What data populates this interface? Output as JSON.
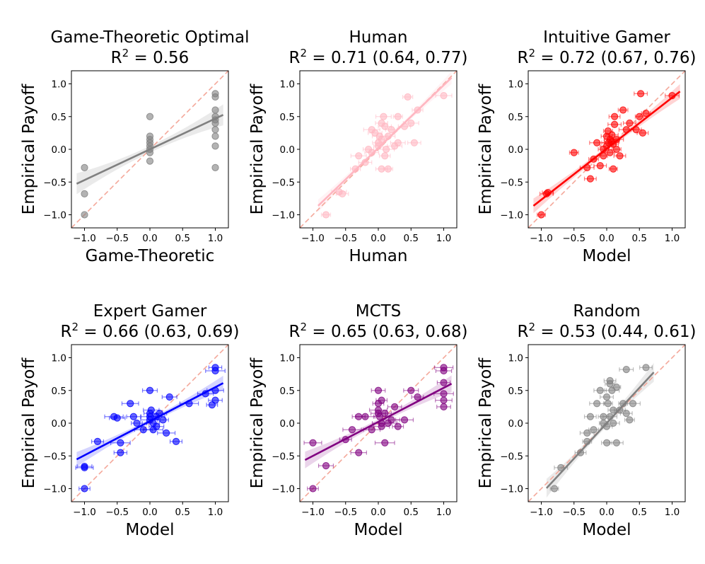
{
  "figure": {
    "background": "#ffffff"
  },
  "chart_data": [
    {
      "type": "scatter",
      "title": "Game-Theoretic Optimal",
      "r2_label": "0.56",
      "xlabel": "Game-Theoretic",
      "ylabel": "Empirical Payoff",
      "xlim": [
        -1.2,
        1.2
      ],
      "ylim": [
        -1.2,
        1.2
      ],
      "xticks": [
        "-1.0",
        "-0.5",
        "0.0",
        "0.5",
        "1.0"
      ],
      "yticks": [
        "-1.0",
        "-0.5",
        "0.0",
        "0.5",
        "1.0"
      ],
      "color": "#808080",
      "fit": {
        "intercept": 0.0,
        "slope": 0.47
      },
      "band_width": 0.1,
      "xerr": 0,
      "points": [
        [
          -1.0,
          -0.28
        ],
        [
          -1.0,
          -0.68
        ],
        [
          -1.0,
          -1.0
        ],
        [
          0,
          0.5
        ],
        [
          0,
          0.2
        ],
        [
          0,
          0.15
        ],
        [
          0,
          0.1
        ],
        [
          0,
          0.05
        ],
        [
          0,
          0.0
        ],
        [
          0,
          -0.05
        ],
        [
          0,
          -0.18
        ],
        [
          1,
          0.85
        ],
        [
          1,
          0.8
        ],
        [
          1,
          0.6
        ],
        [
          1,
          0.5
        ],
        [
          1,
          0.45
        ],
        [
          1,
          0.4
        ],
        [
          1,
          0.3
        ],
        [
          1,
          0.2
        ],
        [
          1,
          0.05
        ],
        [
          1,
          -0.28
        ]
      ]
    },
    {
      "type": "scatter",
      "title": "Human",
      "r2_label": "0.71 (0.64, 0.77)",
      "xlabel": "Human",
      "ylabel": "Empirical Payoff",
      "xlim": [
        -1.2,
        1.2
      ],
      "ylim": [
        -1.2,
        1.2
      ],
      "xticks": [
        "-1.0",
        "-0.5",
        "0.0",
        "0.5",
        "1.0"
      ],
      "yticks": [
        "-1.0",
        "-0.5",
        "0.0",
        "0.5",
        "1.0"
      ],
      "color": "#ffb6c1",
      "fit": {
        "intercept": 0.02,
        "slope": 0.96
      },
      "band_width": 0.06,
      "xerr": 0.1,
      "points": [
        [
          -0.8,
          -1.0
        ],
        [
          -0.6,
          -0.65
        ],
        [
          -0.55,
          -0.68
        ],
        [
          -0.35,
          -0.3
        ],
        [
          -0.3,
          -0.1
        ],
        [
          -0.2,
          -0.2
        ],
        [
          -0.15,
          0.0
        ],
        [
          -0.1,
          0.3
        ],
        [
          -0.05,
          0.25
        ],
        [
          0,
          0.1
        ],
        [
          0,
          0.05
        ],
        [
          0.02,
          0.2
        ],
        [
          0.05,
          0.4
        ],
        [
          0.05,
          0.15
        ],
        [
          0.08,
          0.5
        ],
        [
          0.1,
          0.35
        ],
        [
          0.1,
          -0.1
        ],
        [
          0.12,
          0.0
        ],
        [
          0.15,
          0.2
        ],
        [
          0.2,
          0.3
        ],
        [
          0.3,
          0.5
        ],
        [
          0.3,
          0.1
        ],
        [
          0.4,
          0.35
        ],
        [
          0.45,
          0.8
        ],
        [
          0.5,
          0.4
        ],
        [
          0.55,
          0.1
        ],
        [
          0.6,
          0.6
        ],
        [
          1.0,
          0.82
        ],
        [
          -0.1,
          -0.05
        ],
        [
          0.05,
          -0.3
        ],
        [
          0.15,
          -0.3
        ],
        [
          0.25,
          0.05
        ]
      ]
    },
    {
      "type": "scatter",
      "title": "Intuitive Gamer",
      "r2_label": "0.72 (0.67, 0.76)",
      "xlabel": "Model",
      "ylabel": "Empirical Payoff",
      "xlim": [
        -1.2,
        1.2
      ],
      "ylim": [
        -1.2,
        1.2
      ],
      "xticks": [
        "-1.0",
        "-0.5",
        "0.0",
        "0.5",
        "1.0"
      ],
      "yticks": [
        "-1.0",
        "-0.5",
        "0.0",
        "0.5",
        "1.0"
      ],
      "color": "#ff0000",
      "fit": {
        "intercept": 0.01,
        "slope": 0.78
      },
      "band_width": 0.07,
      "xerr": 0.09,
      "points": [
        [
          -1.0,
          -1.0
        ],
        [
          -0.92,
          -0.68
        ],
        [
          -0.9,
          -0.66
        ],
        [
          -0.5,
          -0.05
        ],
        [
          -0.3,
          -0.28
        ],
        [
          -0.25,
          -0.45
        ],
        [
          -0.2,
          -0.15
        ],
        [
          -0.15,
          0.1
        ],
        [
          -0.1,
          -0.25
        ],
        [
          -0.05,
          0.0
        ],
        [
          -0.05,
          -0.1
        ],
        [
          0,
          0.05
        ],
        [
          0,
          0.2
        ],
        [
          0.02,
          0.28
        ],
        [
          0.03,
          0.1
        ],
        [
          0.05,
          0.15
        ],
        [
          0.05,
          -0.05
        ],
        [
          0.08,
          0.12
        ],
        [
          0.08,
          0.22
        ],
        [
          0.1,
          0.08
        ],
        [
          0.1,
          -0.3
        ],
        [
          0.12,
          0.38
        ],
        [
          0.12,
          0.5
        ],
        [
          0.15,
          0.0
        ],
        [
          0.15,
          0.15
        ],
        [
          0.2,
          -0.1
        ],
        [
          0.25,
          0.6
        ],
        [
          0.3,
          0.3
        ],
        [
          0.35,
          0.4
        ],
        [
          0.45,
          0.3
        ],
        [
          0.5,
          0.5
        ],
        [
          0.52,
          0.85
        ],
        [
          0.55,
          0.25
        ],
        [
          0.6,
          0.55
        ],
        [
          1.0,
          0.82
        ]
      ]
    },
    {
      "type": "scatter",
      "title": "Expert Gamer",
      "r2_label": "0.66 (0.63, 0.69)",
      "xlabel": "Model",
      "ylabel": "Empirical Payoff",
      "xlim": [
        -1.2,
        1.2
      ],
      "ylim": [
        -1.2,
        1.2
      ],
      "xticks": [
        "-1.0",
        "-0.5",
        "0.0",
        "0.5",
        "1.0"
      ],
      "yticks": [
        "-1.0",
        "-0.5",
        "0.0",
        "0.5",
        "1.0"
      ],
      "color": "#0000ff",
      "fit": {
        "intercept": 0.03,
        "slope": 0.52
      },
      "band_width": 0.07,
      "xerr": 0.12,
      "points": [
        [
          -1.0,
          -1.0
        ],
        [
          -1.0,
          -0.68
        ],
        [
          -1.0,
          -0.66
        ],
        [
          -0.8,
          -0.28
        ],
        [
          -0.55,
          0.1
        ],
        [
          -0.5,
          0.08
        ],
        [
          -0.45,
          -0.45
        ],
        [
          -0.45,
          -0.3
        ],
        [
          -0.3,
          0.3
        ],
        [
          -0.25,
          0.1
        ],
        [
          -0.2,
          0.0
        ],
        [
          -0.1,
          -0.1
        ],
        [
          0,
          0.5
        ],
        [
          0,
          0.15
        ],
        [
          0,
          0.05
        ],
        [
          0.02,
          0.2
        ],
        [
          0.05,
          0.0
        ],
        [
          0.05,
          -0.1
        ],
        [
          0.1,
          0.1
        ],
        [
          0.15,
          0.15
        ],
        [
          0.2,
          0.05
        ],
        [
          0.25,
          -0.15
        ],
        [
          0.3,
          0.4
        ],
        [
          0.4,
          -0.28
        ],
        [
          0.6,
          0.3
        ],
        [
          0.85,
          0.45
        ],
        [
          1.0,
          0.85
        ],
        [
          1.0,
          0.8
        ],
        [
          1.0,
          0.5
        ],
        [
          1.0,
          0.35
        ],
        [
          0.95,
          0.28
        ],
        [
          0.0,
          0.1
        ],
        [
          0.1,
          -0.05
        ]
      ]
    },
    {
      "type": "scatter",
      "title": "MCTS",
      "r2_label": "0.65 (0.63, 0.68)",
      "xlabel": "Model",
      "ylabel": "Empirical Payoff",
      "xlim": [
        -1.2,
        1.2
      ],
      "ylim": [
        -1.2,
        1.2
      ],
      "xticks": [
        "-1.0",
        "-0.5",
        "0.0",
        "0.5",
        "1.0"
      ],
      "yticks": [
        "-1.0",
        "-0.5",
        "0.0",
        "0.5",
        "1.0"
      ],
      "color": "#800080",
      "fit": {
        "intercept": 0.02,
        "slope": 0.52
      },
      "band_width": 0.08,
      "xerr": 0.12,
      "points": [
        [
          -1.0,
          -1.0
        ],
        [
          -1.0,
          -0.3
        ],
        [
          -0.8,
          -0.65
        ],
        [
          -0.5,
          -0.25
        ],
        [
          -0.4,
          -0.1
        ],
        [
          -0.3,
          -0.45
        ],
        [
          -0.3,
          0.1
        ],
        [
          -0.2,
          0.1
        ],
        [
          -0.1,
          -0.1
        ],
        [
          0,
          0.5
        ],
        [
          0,
          0.3
        ],
        [
          0,
          0.2
        ],
        [
          0,
          0.15
        ],
        [
          0.02,
          0.1
        ],
        [
          0.05,
          0.0
        ],
        [
          0.05,
          -0.05
        ],
        [
          0.1,
          0.15
        ],
        [
          0.1,
          -0.3
        ],
        [
          0.2,
          0.05
        ],
        [
          0.25,
          0.25
        ],
        [
          0.3,
          -0.05
        ],
        [
          0.4,
          0.05
        ],
        [
          0.5,
          0.5
        ],
        [
          0.6,
          0.4
        ],
        [
          1.0,
          0.85
        ],
        [
          1.0,
          0.8
        ],
        [
          1.0,
          0.62
        ],
        [
          1.0,
          0.45
        ],
        [
          1.0,
          0.35
        ],
        [
          1.0,
          0.25
        ],
        [
          0.05,
          0.35
        ],
        [
          0.15,
          0.0
        ]
      ]
    },
    {
      "type": "scatter",
      "title": "Random",
      "r2_label": "0.53 (0.44, 0.61)",
      "xlabel": "Model",
      "ylabel": "Empirical Payoff",
      "xlim": [
        -1.2,
        1.2
      ],
      "ylim": [
        -1.2,
        1.2
      ],
      "xticks": [
        "-1.0",
        "-0.5",
        "0.0",
        "0.5",
        "1.0"
      ],
      "yticks": [
        "-1.0",
        "-0.5",
        "0.0",
        "0.5",
        "1.0"
      ],
      "color": "#808080",
      "fit": {
        "intercept": 0.0,
        "slope": 1.08
      },
      "band_width": 0.09,
      "xerr": 0.09,
      "points": [
        [
          -0.8,
          -1.0
        ],
        [
          -0.7,
          -0.68
        ],
        [
          -0.4,
          -0.45
        ],
        [
          -0.3,
          -0.28
        ],
        [
          -0.3,
          -0.15
        ],
        [
          -0.25,
          0.1
        ],
        [
          -0.2,
          -0.1
        ],
        [
          -0.15,
          0.3
        ],
        [
          -0.1,
          0.5
        ],
        [
          -0.05,
          0.1
        ],
        [
          -0.05,
          0.0
        ],
        [
          0,
          0.4
        ],
        [
          0,
          -0.05
        ],
        [
          0.02,
          0.3
        ],
        [
          0.05,
          0.1
        ],
        [
          0.05,
          0.65
        ],
        [
          0.05,
          0.6
        ],
        [
          0.08,
          0.5
        ],
        [
          0.1,
          0.0
        ],
        [
          0.1,
          0.2
        ],
        [
          0.15,
          0.55
        ],
        [
          0.15,
          -0.3
        ],
        [
          0.2,
          0.2
        ],
        [
          0.25,
          0.3
        ],
        [
          0.3,
          0.82
        ],
        [
          0.3,
          0.15
        ],
        [
          0.35,
          0.05
        ],
        [
          0.4,
          0.3
        ],
        [
          0.6,
          0.85
        ],
        [
          0.0,
          -0.3
        ]
      ]
    }
  ]
}
